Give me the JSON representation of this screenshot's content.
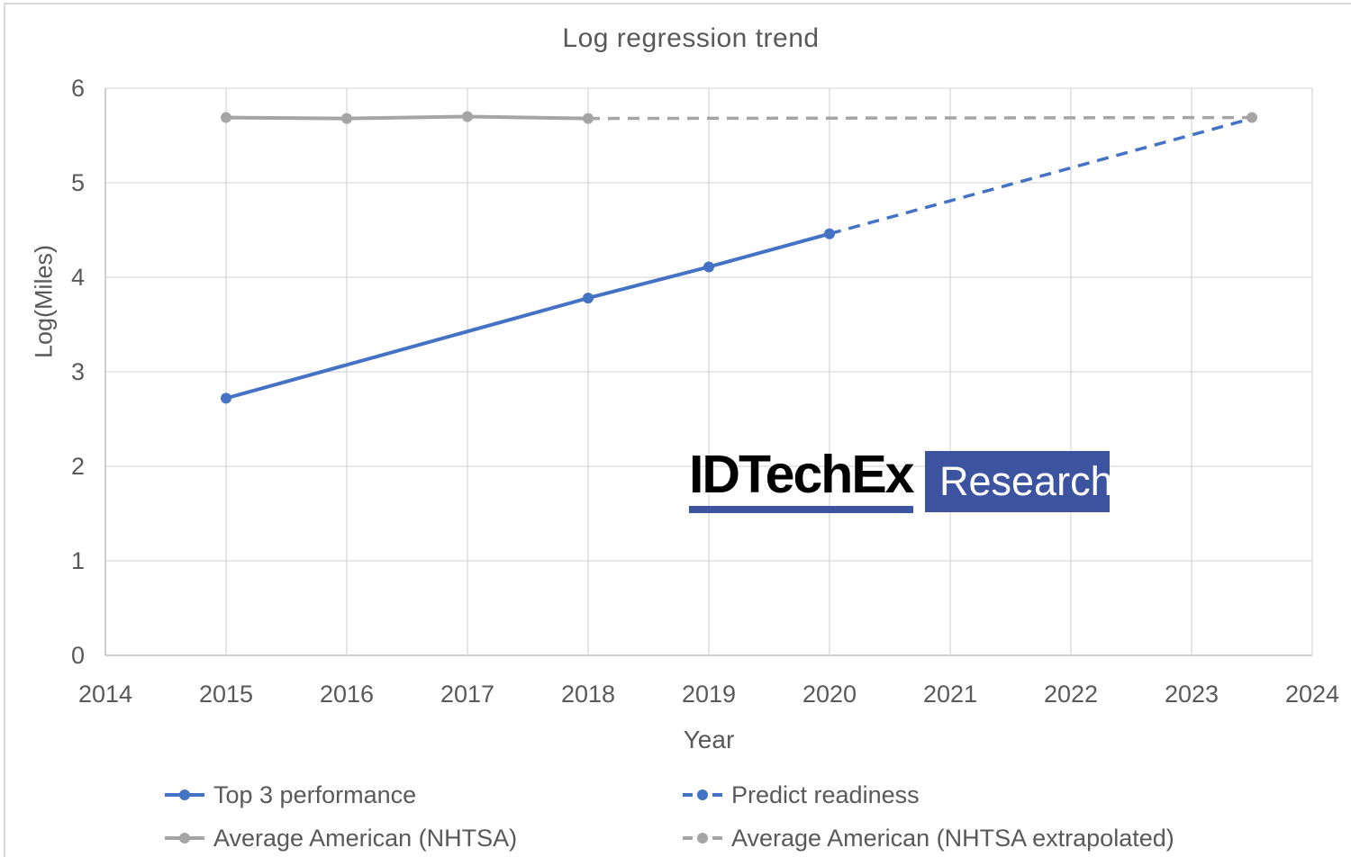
{
  "chart_data": {
    "type": "line",
    "title": "Log regression trend",
    "xlabel": "Year",
    "ylabel": "Log(Miles)",
    "xlim": [
      2014,
      2024
    ],
    "ylim": [
      0,
      6
    ],
    "x_ticks": [
      "2014",
      "2015",
      "2016",
      "2017",
      "2018",
      "2019",
      "2020",
      "2021",
      "2022",
      "2023",
      "2024"
    ],
    "x_tick_values": [
      2014,
      2015,
      2016,
      2017,
      2018,
      2019,
      2020,
      2021,
      2022,
      2023,
      2024
    ],
    "y_ticks": [
      "0",
      "1",
      "2",
      "3",
      "4",
      "5",
      "6"
    ],
    "y_tick_values": [
      0,
      1,
      2,
      3,
      4,
      5,
      6
    ],
    "grid": true,
    "legend_position": "bottom",
    "series": [
      {
        "name": "Top 3 performance",
        "color": "#4472c4",
        "style": "solid",
        "markers": true,
        "end_marker": false,
        "points": [
          [
            2015,
            2.72
          ],
          [
            2018,
            3.78
          ],
          [
            2019,
            4.11
          ],
          [
            2020,
            4.46
          ]
        ]
      },
      {
        "name": "Predict readiness",
        "color": "#4472c4",
        "style": "dashed",
        "markers": false,
        "end_marker": false,
        "points": [
          [
            2020,
            4.46
          ],
          [
            2023.5,
            5.68
          ]
        ]
      },
      {
        "name": "Average American (NHTSA)",
        "color": "#a5a5a5",
        "style": "solid",
        "markers": true,
        "end_marker": false,
        "points": [
          [
            2015,
            5.69
          ],
          [
            2016,
            5.68
          ],
          [
            2017,
            5.7
          ],
          [
            2018,
            5.68
          ]
        ]
      },
      {
        "name": "Average American (NHTSA extrapolated)",
        "color": "#a5a5a5",
        "style": "dashed",
        "markers": false,
        "end_marker": true,
        "points": [
          [
            2018,
            5.68
          ],
          [
            2023.5,
            5.69
          ]
        ]
      }
    ]
  },
  "logo": {
    "brand": "IDTechEx",
    "product": "Research",
    "accent_color": "#3c53a0"
  },
  "colors": {
    "text": "#595959",
    "gridline": "#d9d9d9",
    "axis_line": "#bfbfbf",
    "background": "#ffffff",
    "frame_border": "#d9d9d9",
    "series_blue": "#4472c4",
    "series_gray": "#a5a5a5"
  }
}
